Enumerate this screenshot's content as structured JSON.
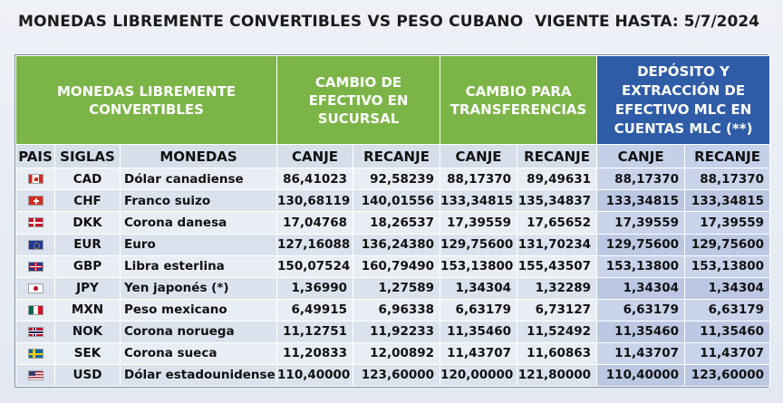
{
  "header": {
    "title": "MONEDAS LIBREMENTE CONVERTIBLES VS PESO CUBANO",
    "valid_until": "VIGENTE HASTA:  5/7/2024"
  },
  "table": {
    "group_headers": {
      "currencies": "MONEDAS LIBREMENTE CONVERTIBLES",
      "cash": "CAMBIO DE EFECTIVO EN SUCURSAL",
      "transfers": "CAMBIO PARA TRANSFERENCIAS",
      "mlc": "DEPÓSITO Y EXTRACCIÓN DE EFECTIVO MLC EN CUENTAS MLC (**)"
    },
    "columns": {
      "pais": "PAIS",
      "siglas": "SIGLAS",
      "monedas": "MONEDAS",
      "canje": "CANJE",
      "recanje": "RECANJE"
    },
    "rows": [
      {
        "flag": "canada-flag-icon",
        "code": "CAD",
        "name": "Dólar canadiense",
        "cash_canje": "86,41023",
        "cash_recanje": "92,58239",
        "tr_canje": "88,17370",
        "tr_recanje": "89,49631",
        "mlc_canje": "88,17370",
        "mlc_recanje": "88,17370"
      },
      {
        "flag": "switzerland-flag-icon",
        "code": "CHF",
        "name": "Franco suizo",
        "cash_canje": "130,68119",
        "cash_recanje": "140,01556",
        "tr_canje": "133,34815",
        "tr_recanje": "135,34837",
        "mlc_canje": "133,34815",
        "mlc_recanje": "133,34815"
      },
      {
        "flag": "denmark-flag-icon",
        "code": "DKK",
        "name": "Corona danesa",
        "cash_canje": "17,04768",
        "cash_recanje": "18,26537",
        "tr_canje": "17,39559",
        "tr_recanje": "17,65652",
        "mlc_canje": "17,39559",
        "mlc_recanje": "17,39559"
      },
      {
        "flag": "eu-flag-icon",
        "code": "EUR",
        "name": "Euro",
        "cash_canje": "127,16088",
        "cash_recanje": "136,24380",
        "tr_canje": "129,75600",
        "tr_recanje": "131,70234",
        "mlc_canje": "129,75600",
        "mlc_recanje": "129,75600"
      },
      {
        "flag": "uk-flag-icon",
        "code": "GBP",
        "name": "Libra esterlina",
        "cash_canje": "150,07524",
        "cash_recanje": "160,79490",
        "tr_canje": "153,13800",
        "tr_recanje": "155,43507",
        "mlc_canje": "153,13800",
        "mlc_recanje": "153,13800"
      },
      {
        "flag": "japan-flag-icon",
        "code": "JPY",
        "name": "Yen japonés (*)",
        "cash_canje": "1,36990",
        "cash_recanje": "1,27589",
        "tr_canje": "1,34304",
        "tr_recanje": "1,32289",
        "mlc_canje": "1,34304",
        "mlc_recanje": "1,34304"
      },
      {
        "flag": "mexico-flag-icon",
        "code": "MXN",
        "name": "Peso mexicano",
        "cash_canje": "6,49915",
        "cash_recanje": "6,96338",
        "tr_canje": "6,63179",
        "tr_recanje": "6,73127",
        "mlc_canje": "6,63179",
        "mlc_recanje": "6,63179"
      },
      {
        "flag": "norway-flag-icon",
        "code": "NOK",
        "name": "Corona noruega",
        "cash_canje": "11,12751",
        "cash_recanje": "11,92233",
        "tr_canje": "11,35460",
        "tr_recanje": "11,52492",
        "mlc_canje": "11,35460",
        "mlc_recanje": "11,35460"
      },
      {
        "flag": "sweden-flag-icon",
        "code": "SEK",
        "name": "Corona sueca",
        "cash_canje": "11,20833",
        "cash_recanje": "12,00892",
        "tr_canje": "11,43707",
        "tr_recanje": "11,60863",
        "mlc_canje": "11,43707",
        "mlc_recanje": "11,43707"
      },
      {
        "flag": "usa-flag-icon",
        "code": "USD",
        "name": "Dólar estadounidense",
        "cash_canje": "110,40000",
        "cash_recanje": "123,60000",
        "tr_canje": "120,00000",
        "tr_recanje": "121,80000",
        "mlc_canje": "110,40000",
        "mlc_recanje": "123,60000"
      }
    ]
  },
  "colors": {
    "green_header": "#7cb547",
    "blue_header": "#2f5ca7",
    "row_light": "#e9edf4",
    "row_dark": "#dbe2ee"
  }
}
